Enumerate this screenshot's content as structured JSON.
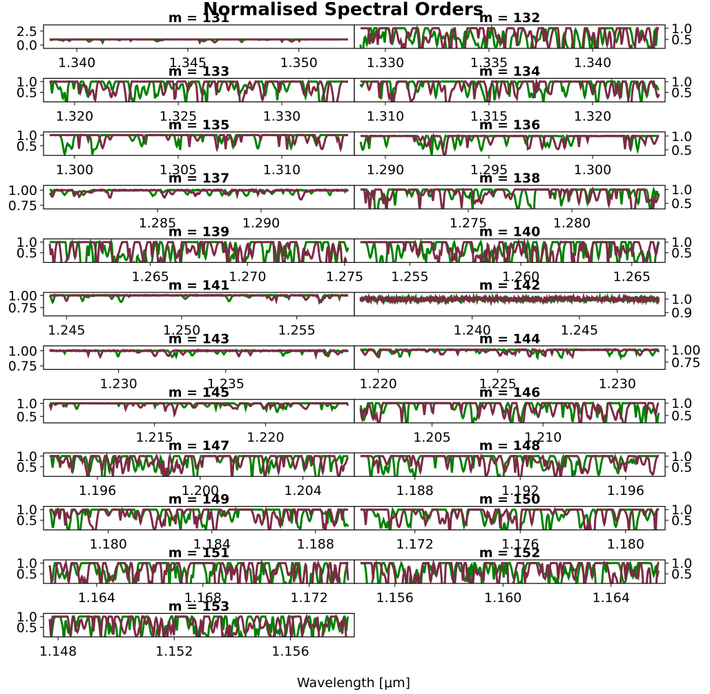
{
  "figure": {
    "title": "Normalised Spectral Orders",
    "xlabel": "Wavelength [$\\mu$m]",
    "xlabel_display": "Wavelength [μm]"
  },
  "colors": {
    "series_a": "#008000",
    "series_b": "#7b2a44"
  },
  "chart_data": [
    {
      "type": "line",
      "title": "m = 131",
      "xlim": [
        1.3385,
        1.3525
      ],
      "ylim": [
        -0.6,
        3.6
      ],
      "xticks": [
        1.34,
        1.345,
        1.35
      ],
      "xtick_labels": [
        "1.340",
        "1.345",
        "1.350"
      ],
      "yticks": [
        0.0,
        2.5
      ],
      "ytick_labels": [
        "0.0",
        "2.5"
      ],
      "ytick_side": "left",
      "profile": "flat"
    },
    {
      "type": "line",
      "title": "m = 132",
      "xlim": [
        1.3285,
        1.3435
      ],
      "ylim": [
        0.1,
        1.15
      ],
      "xticks": [
        1.33,
        1.335,
        1.34
      ],
      "xtick_labels": [
        "1.330",
        "1.335",
        "1.340"
      ],
      "yticks": [
        0.5,
        1.0
      ],
      "ytick_labels": [
        "0.5",
        "1.0"
      ],
      "ytick_side": "right",
      "profile": "dense"
    },
    {
      "type": "line",
      "title": "m = 133",
      "xlim": [
        1.3185,
        1.3335
      ],
      "ylim": [
        0.05,
        1.15
      ],
      "xticks": [
        1.32,
        1.325,
        1.33
      ],
      "xtick_labels": [
        "1.320",
        "1.325",
        "1.330"
      ],
      "yticks": [
        0.5,
        1.0
      ],
      "ytick_labels": [
        "0.5",
        "1.0"
      ],
      "ytick_side": "left",
      "profile": "medium"
    },
    {
      "type": "line",
      "title": "m = 134",
      "xlim": [
        1.3085,
        1.3235
      ],
      "ylim": [
        0.05,
        1.15
      ],
      "xticks": [
        1.31,
        1.315,
        1.32
      ],
      "xtick_labels": [
        "1.310",
        "1.315",
        "1.320"
      ],
      "yticks": [
        0.5,
        1.0
      ],
      "ytick_labels": [
        "0.5",
        "1.0"
      ],
      "ytick_side": "right",
      "profile": "medium"
    },
    {
      "type": "line",
      "title": "m = 135",
      "xlim": [
        1.2985,
        1.3135
      ],
      "ylim": [
        0.05,
        1.15
      ],
      "xticks": [
        1.3,
        1.305,
        1.31
      ],
      "xtick_labels": [
        "1.300",
        "1.305",
        "1.310"
      ],
      "yticks": [
        0.5,
        1.0
      ],
      "ytick_labels": [
        "0.5",
        "1.0"
      ],
      "ytick_side": "left",
      "profile": "sparse"
    },
    {
      "type": "line",
      "title": "m = 136",
      "xlim": [
        1.2885,
        1.3035
      ],
      "ylim": [
        0.3,
        1.15
      ],
      "xticks": [
        1.29,
        1.295,
        1.3
      ],
      "xtick_labels": [
        "1.290",
        "1.295",
        "1.300"
      ],
      "yticks": [
        0.5,
        1.0
      ],
      "ytick_labels": [
        "0.5",
        "1.0"
      ],
      "ytick_side": "right",
      "profile": "sparse"
    },
    {
      "type": "line",
      "title": "m = 137",
      "xlim": [
        1.2795,
        1.2945
      ],
      "ylim": [
        0.69,
        1.08
      ],
      "xticks": [
        1.285,
        1.29
      ],
      "xtick_labels": [
        "1.285",
        "1.290"
      ],
      "yticks": [
        0.75,
        1.0
      ],
      "ytick_labels": [
        "0.75",
        "1.00"
      ],
      "ytick_side": "left",
      "profile": "shallow"
    },
    {
      "type": "line",
      "title": "m = 138",
      "xlim": [
        1.2695,
        1.2845
      ],
      "ylim": [
        0.3,
        1.15
      ],
      "xticks": [
        1.275,
        1.28
      ],
      "xtick_labels": [
        "1.275",
        "1.280"
      ],
      "yticks": [
        0.5,
        1.0
      ],
      "ytick_labels": [
        "0.5",
        "1.0"
      ],
      "ytick_side": "right",
      "profile": "medium"
    },
    {
      "type": "line",
      "title": "m = 139",
      "xlim": [
        1.2595,
        1.2755
      ],
      "ylim": [
        0.05,
        1.15
      ],
      "xticks": [
        1.265,
        1.27,
        1.275
      ],
      "xtick_labels": [
        "1.265",
        "1.270",
        "1.275"
      ],
      "yticks": [
        0.5,
        1.0
      ],
      "ytick_labels": [
        "0.5",
        "1.0"
      ],
      "ytick_side": "left",
      "profile": "dense"
    },
    {
      "type": "line",
      "title": "m = 140",
      "xlim": [
        1.2525,
        1.2665
      ],
      "ylim": [
        0.05,
        1.15
      ],
      "xticks": [
        1.255,
        1.26,
        1.265
      ],
      "xtick_labels": [
        "1.255",
        "1.260",
        "1.265"
      ],
      "yticks": [
        0.5,
        1.0
      ],
      "ytick_labels": [
        "0.5",
        "1.0"
      ],
      "ytick_side": "right",
      "profile": "dense"
    },
    {
      "type": "line",
      "title": "m = 141",
      "xlim": [
        1.244,
        1.2575
      ],
      "ylim": [
        0.58,
        1.06
      ],
      "xticks": [
        1.245,
        1.25,
        1.255
      ],
      "xtick_labels": [
        "1.245",
        "1.250",
        "1.255"
      ],
      "yticks": [
        0.75,
        1.0
      ],
      "ytick_labels": [
        "0.75",
        "1.00"
      ],
      "ytick_side": "left",
      "profile": "flat"
    },
    {
      "type": "line",
      "title": "m = 142",
      "xlim": [
        1.2345,
        1.249
      ],
      "ylim": [
        0.875,
        1.05
      ],
      "xticks": [
        1.24,
        1.245
      ],
      "xtick_labels": [
        "1.240",
        "1.245"
      ],
      "yticks": [
        0.9,
        1.0
      ],
      "ytick_labels": [
        "0.9",
        "1.0"
      ],
      "ytick_side": "right",
      "profile": "noisy"
    },
    {
      "type": "line",
      "title": "m = 143",
      "xlim": [
        1.2265,
        1.241
      ],
      "ylim": [
        0.69,
        1.08
      ],
      "xticks": [
        1.23,
        1.235
      ],
      "xtick_labels": [
        "1.230",
        "1.235"
      ],
      "yticks": [
        0.75,
        1.0
      ],
      "ytick_labels": [
        "0.75",
        "1.00"
      ],
      "ytick_side": "left",
      "profile": "flat"
    },
    {
      "type": "line",
      "title": "m = 144",
      "xlim": [
        1.219,
        1.232
      ],
      "ylim": [
        0.6,
        1.08
      ],
      "xticks": [
        1.22,
        1.225,
        1.23
      ],
      "xtick_labels": [
        "1.220",
        "1.225",
        "1.230"
      ],
      "yticks": [
        0.75,
        1.0
      ],
      "ytick_labels": [
        "0.75",
        "1.00"
      ],
      "ytick_side": "right",
      "profile": "shallow"
    },
    {
      "type": "line",
      "title": "m = 145",
      "xlim": [
        1.21,
        1.224
      ],
      "ylim": [
        0.25,
        1.15
      ],
      "xticks": [
        1.215,
        1.22
      ],
      "xtick_labels": [
        "1.215",
        "1.220"
      ],
      "yticks": [
        0.5,
        1.0
      ],
      "ytick_labels": [
        "0.5",
        "1.0"
      ],
      "ytick_side": "left",
      "profile": "shallow"
    },
    {
      "type": "line",
      "title": "m = 146",
      "xlim": [
        1.2015,
        1.2155
      ],
      "ylim": [
        0.2,
        1.15
      ],
      "xticks": [
        1.205,
        1.21
      ],
      "xtick_labels": [
        "1.205",
        "1.210"
      ],
      "yticks": [
        0.5,
        1.0
      ],
      "ytick_labels": [
        "0.5",
        "1.0"
      ],
      "ytick_side": "right",
      "profile": "medium"
    },
    {
      "type": "line",
      "title": "m = 147",
      "xlim": [
        1.1939,
        1.206
      ],
      "ylim": [
        0.05,
        1.15
      ],
      "xticks": [
        1.196,
        1.2,
        1.204
      ],
      "xtick_labels": [
        "1.196",
        "1.200",
        "1.204"
      ],
      "yticks": [
        0.5,
        1.0
      ],
      "ytick_labels": [
        "0.5",
        "1.0"
      ],
      "ytick_side": "left",
      "profile": "medium"
    },
    {
      "type": "line",
      "title": "m = 148",
      "xlim": [
        1.1857,
        1.1975
      ],
      "ylim": [
        0.05,
        1.15
      ],
      "xticks": [
        1.188,
        1.192,
        1.196
      ],
      "xtick_labels": [
        "1.188",
        "1.192",
        "1.196"
      ],
      "yticks": [
        0.5,
        1.0
      ],
      "ytick_labels": [
        "0.5",
        "1.0"
      ],
      "ytick_side": "right",
      "profile": "medium"
    },
    {
      "type": "line",
      "title": "m = 149",
      "xlim": [
        1.1775,
        1.1895
      ],
      "ylim": [
        0.05,
        1.15
      ],
      "xticks": [
        1.18,
        1.184,
        1.188
      ],
      "xtick_labels": [
        "1.180",
        "1.184",
        "1.188"
      ],
      "yticks": [
        0.5,
        1.0
      ],
      "ytick_labels": [
        "0.5",
        "1.0"
      ],
      "ytick_side": "left",
      "profile": "medium"
    },
    {
      "type": "line",
      "title": "m = 150",
      "xlim": [
        1.1697,
        1.1815
      ],
      "ylim": [
        0.05,
        1.15
      ],
      "xticks": [
        1.172,
        1.176,
        1.18
      ],
      "xtick_labels": [
        "1.172",
        "1.176",
        "1.180"
      ],
      "yticks": [
        0.5,
        1.0
      ],
      "ytick_labels": [
        "0.5",
        "1.0"
      ],
      "ytick_side": "right",
      "profile": "medium"
    },
    {
      "type": "line",
      "title": "m = 151",
      "xlim": [
        1.162,
        1.1737
      ],
      "ylim": [
        0.05,
        1.15
      ],
      "xticks": [
        1.164,
        1.168,
        1.172
      ],
      "xtick_labels": [
        "1.164",
        "1.168",
        "1.172"
      ],
      "yticks": [
        0.5,
        1.0
      ],
      "ytick_labels": [
        "0.5",
        "1.0"
      ],
      "ytick_side": "left",
      "profile": "dense"
    },
    {
      "type": "line",
      "title": "m = 152",
      "xlim": [
        1.1545,
        1.166
      ],
      "ylim": [
        0.05,
        1.15
      ],
      "xticks": [
        1.156,
        1.16,
        1.164
      ],
      "xtick_labels": [
        "1.156",
        "1.160",
        "1.164"
      ],
      "yticks": [
        0.5,
        1.0
      ],
      "ytick_labels": [
        "0.5",
        "1.0"
      ],
      "ytick_side": "right",
      "profile": "dense"
    },
    {
      "type": "line",
      "title": "m = 153",
      "xlim": [
        1.1475,
        1.1582
      ],
      "ylim": [
        0.05,
        1.15
      ],
      "xticks": [
        1.148,
        1.152,
        1.156
      ],
      "xtick_labels": [
        "1.148",
        "1.152",
        "1.156"
      ],
      "yticks": [
        0.5,
        1.0
      ],
      "ytick_labels": [
        "0.5",
        "1.0"
      ],
      "ytick_side": "left",
      "profile": "dense"
    }
  ]
}
